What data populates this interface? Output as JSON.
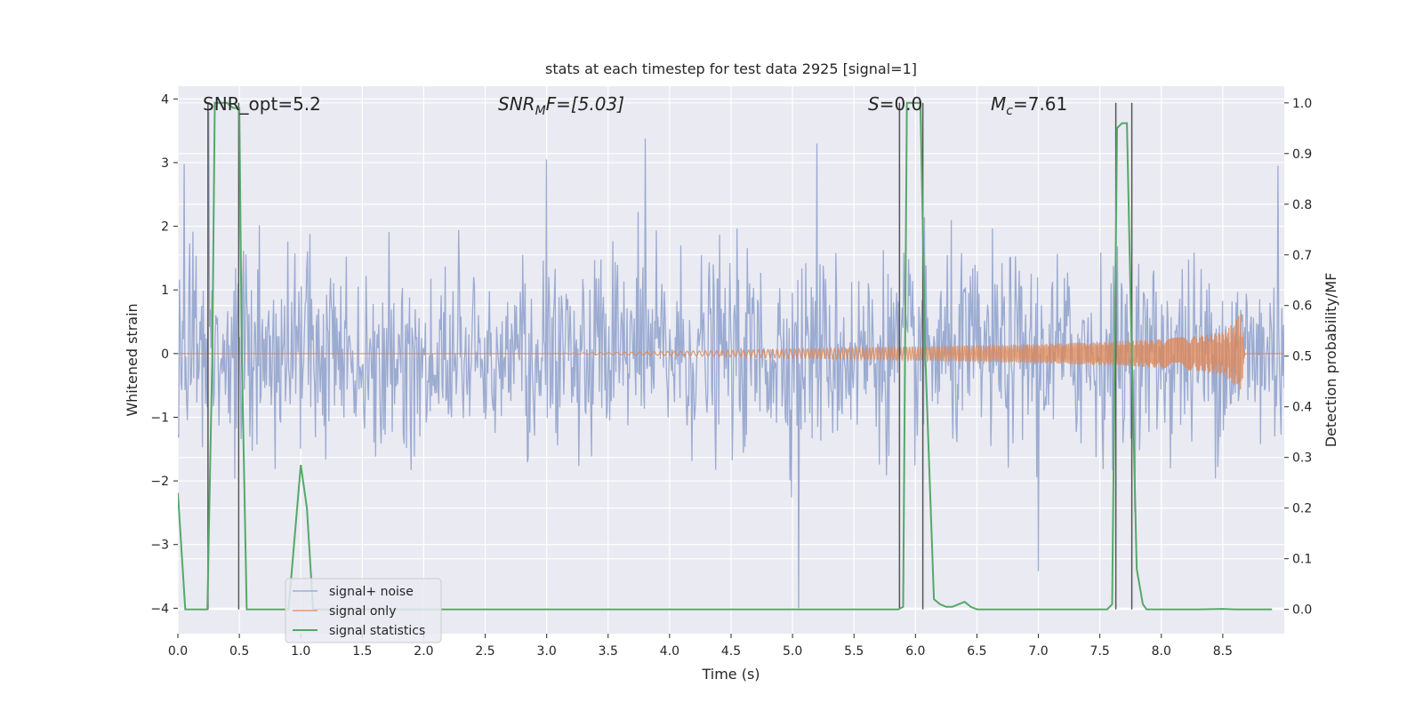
{
  "chart_data": {
    "type": "line",
    "title": "stats at each timestep for test data 2925 [signal=1]",
    "xlabel": "Time (s)",
    "ylabel": "Whitened strain",
    "ylabel_right": "Detection probability/MF",
    "xlim": [
      0,
      9.0
    ],
    "ylim": [
      -4.4,
      4.2
    ],
    "ylim_right": [
      -0.048,
      1.033
    ],
    "x_ticks": [
      "0.0",
      "0.5",
      "1.0",
      "1.5",
      "2.0",
      "2.5",
      "3.0",
      "3.5",
      "4.0",
      "4.5",
      "5.0",
      "5.5",
      "6.0",
      "6.5",
      "7.0",
      "7.5",
      "8.0",
      "8.5"
    ],
    "y_ticks_left": [
      "−4",
      "−3",
      "−2",
      "−1",
      "0",
      "1",
      "2",
      "3",
      "4"
    ],
    "y_ticks_right": [
      "0.0",
      "0.1",
      "0.2",
      "0.3",
      "0.4",
      "0.5",
      "0.6",
      "0.7",
      "0.8",
      "0.9",
      "1.0"
    ],
    "annotations": {
      "snr_opt": "SNR_opt=5.2",
      "snr_mf_main": "SNR",
      "snr_mf_sub": "M",
      "snr_mf_rest": "F=[5.03]",
      "s_main": "S",
      "s_rest": "=0.0",
      "mc_main": "M",
      "mc_sub": "c",
      "mc_rest": "=7.61"
    },
    "legend": {
      "placement": "lower-left",
      "entries": [
        "signal+ noise",
        "signal only",
        "signal statistics"
      ]
    },
    "colors": {
      "noise": "#8da0cb",
      "signal": "#dd8452",
      "stats": "#55a868",
      "vlines": "#555555",
      "axes_bg": "#eaeaf2",
      "grid": "#ffffff"
    },
    "series": [
      {
        "name": "signal statistics",
        "axis": "right",
        "x": [
          0.0,
          0.06,
          0.12,
          0.18,
          0.24,
          0.28,
          0.3,
          0.35,
          0.4,
          0.45,
          0.5,
          0.52,
          0.56,
          0.6,
          0.7,
          0.8,
          0.9,
          1.0,
          1.05,
          1.1,
          1.2,
          1.5,
          2.0,
          3.0,
          4.0,
          5.0,
          5.5,
          5.8,
          5.86,
          5.9,
          5.93,
          5.97,
          6.0,
          6.04,
          6.08,
          6.15,
          6.2,
          6.25,
          6.3,
          6.35,
          6.4,
          6.45,
          6.5,
          6.6,
          7.0,
          7.5,
          7.56,
          7.6,
          7.64,
          7.68,
          7.72,
          7.76,
          7.8,
          7.85,
          7.88,
          7.95,
          8.0,
          8.3,
          8.5,
          8.6,
          8.9
        ],
        "values": [
          0.23,
          0.0,
          0.0,
          0.0,
          0.0,
          0.5,
          1.0,
          1.0,
          1.0,
          0.99,
          0.99,
          0.5,
          0.0,
          0.0,
          0.0,
          0.0,
          0.0,
          0.285,
          0.2,
          0.0,
          0.0,
          0.0,
          0.0,
          0.0,
          0.0,
          0.0,
          0.0,
          0.0,
          0.0,
          0.005,
          1.0,
          1.0,
          1.0,
          1.0,
          0.5,
          0.02,
          0.01,
          0.005,
          0.005,
          0.01,
          0.015,
          0.005,
          0.0,
          0.0,
          0.0,
          0.0,
          0.0,
          0.01,
          0.95,
          0.96,
          0.96,
          0.5,
          0.08,
          0.01,
          0.0,
          0.0,
          0.0,
          0.0,
          0.001,
          0.0,
          0.0
        ]
      },
      {
        "name": "signal only",
        "axis": "left",
        "envelope": "chirp",
        "x": [
          0.0,
          3.0,
          4.5,
          5.0,
          5.5,
          6.0,
          6.5,
          7.0,
          7.5,
          8.0,
          8.3,
          8.5,
          8.6,
          8.65,
          8.68,
          9.0
        ],
        "values": [
          0.0,
          0.0,
          0.05,
          0.07,
          0.09,
          0.11,
          0.13,
          0.15,
          0.18,
          0.23,
          0.28,
          0.35,
          0.5,
          0.65,
          0.0,
          0.0
        ]
      },
      {
        "name": "signal+ noise",
        "axis": "left",
        "process": "gaussian-noise",
        "noise_std": 0.75,
        "samples": 1400,
        "spikes": [
          {
            "x": 5.05,
            "value": -4.0
          },
          {
            "x": 7.0,
            "value": -3.42
          },
          {
            "x": 3.0,
            "value": 3.05
          },
          {
            "x": 3.8,
            "value": 3.38
          },
          {
            "x": 5.2,
            "value": 3.3
          },
          {
            "x": 0.25,
            "value": 3.8
          },
          {
            "x": 8.95,
            "value": 2.95
          },
          {
            "x": 0.05,
            "value": 2.98
          }
        ]
      }
    ],
    "vertical_lines_x": [
      0.245,
      0.495,
      5.87,
      6.06,
      7.63,
      7.76
    ]
  }
}
